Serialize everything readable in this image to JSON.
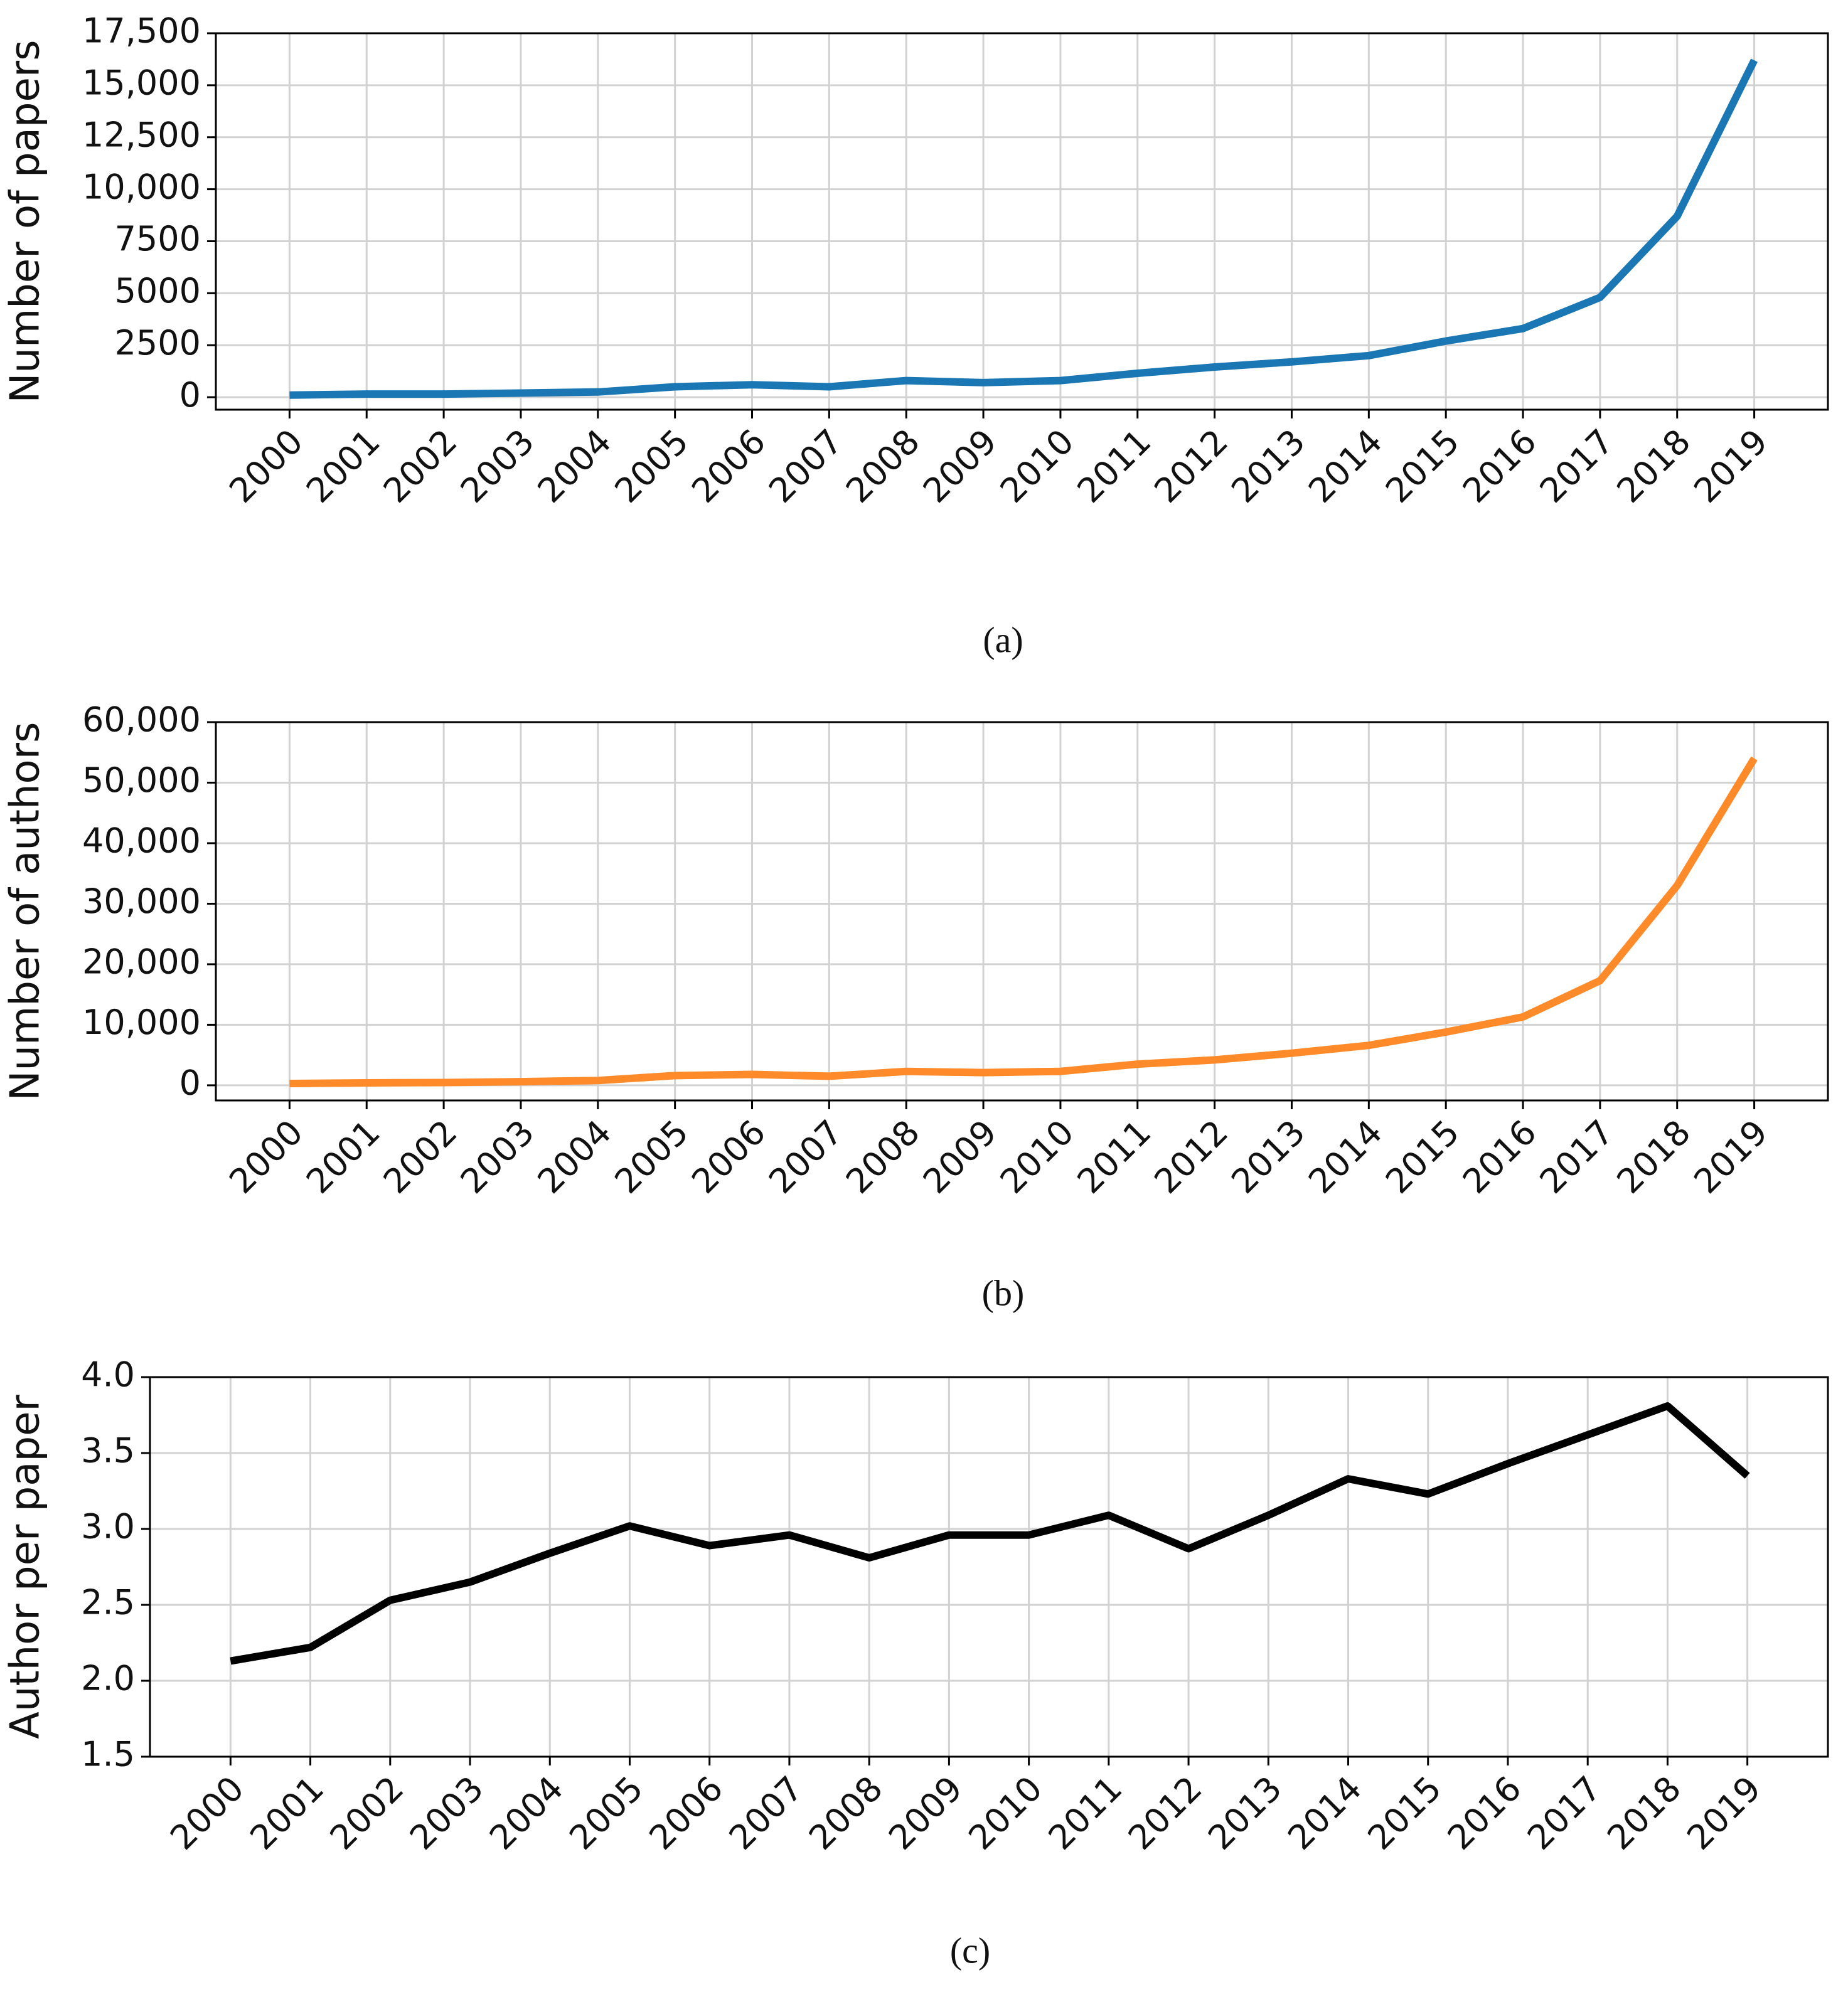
{
  "chart_data": [
    {
      "type": "line",
      "ylabel": "Number of papers",
      "caption": "(a)",
      "color": "#1a77b4",
      "grid": true,
      "categories": [
        "2000",
        "2001",
        "2002",
        "2003",
        "2004",
        "2005",
        "2006",
        "2007",
        "2008",
        "2009",
        "2010",
        "2011",
        "2012",
        "2013",
        "2014",
        "2015",
        "2016",
        "2017",
        "2018",
        "2019"
      ],
      "values": [
        100,
        150,
        150,
        200,
        250,
        500,
        600,
        500,
        800,
        700,
        800,
        1150,
        1450,
        1700,
        2000,
        2700,
        3300,
        4800,
        8700,
        16200
      ],
      "ylim": [
        -600,
        17500
      ],
      "yticks": [
        0,
        2500,
        5000,
        7500,
        {
          "value": 10000,
          "label": "10,000"
        },
        {
          "value": 12500,
          "label": "12,500"
        },
        {
          "value": 15000,
          "label": "15,000"
        },
        {
          "value": 17500,
          "label": "17,500"
        }
      ]
    },
    {
      "type": "line",
      "ylabel": "Number of authors",
      "caption": "(b)",
      "color": "#ff8a2a",
      "grid": true,
      "categories": [
        "2000",
        "2001",
        "2002",
        "2003",
        "2004",
        "2005",
        "2006",
        "2007",
        "2008",
        "2009",
        "2010",
        "2011",
        "2012",
        "2013",
        "2014",
        "2015",
        "2016",
        "2017",
        "2018",
        "2019"
      ],
      "values": [
        300,
        400,
        450,
        600,
        800,
        1600,
        1800,
        1500,
        2300,
        2100,
        2300,
        3500,
        4200,
        5300,
        6600,
        8800,
        11300,
        17300,
        33000,
        54000
      ],
      "ylim": [
        -2500,
        60000
      ],
      "yticks": [
        0,
        {
          "value": 10000,
          "label": "10,000"
        },
        {
          "value": 20000,
          "label": "20,000"
        },
        {
          "value": 30000,
          "label": "30,000"
        },
        {
          "value": 40000,
          "label": "40,000"
        },
        {
          "value": 50000,
          "label": "50,000"
        },
        {
          "value": 60000,
          "label": "60,000"
        }
      ]
    },
    {
      "type": "line",
      "ylabel": "Author per paper",
      "caption": "(c)",
      "color": "#000000",
      "grid": true,
      "categories": [
        "2000",
        "2001",
        "2002",
        "2003",
        "2004",
        "2005",
        "2006",
        "2007",
        "2008",
        "2009",
        "2010",
        "2011",
        "2012",
        "2013",
        "2014",
        "2015",
        "2016",
        "2017",
        "2018",
        "2019"
      ],
      "values": [
        2.13,
        2.22,
        2.53,
        2.65,
        2.84,
        3.02,
        2.89,
        2.96,
        2.81,
        2.96,
        2.96,
        3.09,
        2.87,
        3.09,
        3.33,
        3.23,
        3.43,
        3.62,
        3.81,
        3.35
      ],
      "ylim": [
        1.5,
        4.0
      ],
      "yticks": [
        {
          "value": 1.5,
          "label": "1.5"
        },
        {
          "value": 2.0,
          "label": "2.0"
        },
        {
          "value": 2.5,
          "label": "2.5"
        },
        {
          "value": 3.0,
          "label": "3.0"
        },
        {
          "value": 3.5,
          "label": "3.5"
        },
        {
          "value": 4.0,
          "label": "4.0"
        }
      ]
    }
  ]
}
